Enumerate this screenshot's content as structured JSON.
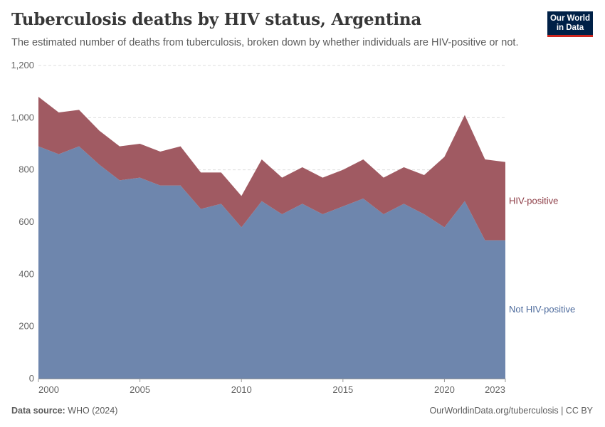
{
  "header": {
    "title": "Tuberculosis deaths by HIV status, Argentina",
    "subtitle": "The estimated number of deaths from tuberculosis, broken down by whether individuals are HIV-positive or not.",
    "logo_line1": "Our World",
    "logo_line2": "in Data"
  },
  "footer": {
    "source_label": "Data source:",
    "source_value": "WHO (2024)",
    "url": "OurWorldinData.org/tuberculosis | CC BY"
  },
  "colors": {
    "not_hiv": "#6e86ad",
    "hiv": "#a05a62",
    "not_hiv_label": "#4c6a9c",
    "hiv_label": "#8c3b44",
    "grid": "#dddddd",
    "axis_text": "#666666"
  },
  "chart_data": {
    "type": "area",
    "stacked": true,
    "x": [
      2000,
      2001,
      2002,
      2003,
      2004,
      2005,
      2006,
      2007,
      2008,
      2009,
      2010,
      2011,
      2012,
      2013,
      2014,
      2015,
      2016,
      2017,
      2018,
      2019,
      2020,
      2021,
      2022,
      2023
    ],
    "series": [
      {
        "name": "Not HIV-positive",
        "values": [
          890,
          860,
          890,
          820,
          760,
          770,
          740,
          740,
          650,
          670,
          580,
          680,
          630,
          670,
          630,
          660,
          690,
          630,
          670,
          630,
          580,
          680,
          530,
          530
        ]
      },
      {
        "name": "HIV-positive",
        "values": [
          190,
          160,
          140,
          130,
          130,
          130,
          130,
          150,
          140,
          120,
          120,
          160,
          140,
          140,
          140,
          140,
          150,
          140,
          140,
          150,
          270,
          330,
          310,
          300
        ]
      }
    ],
    "xticks": [
      "2000",
      "2005",
      "2010",
      "2015",
      "2020",
      "2023"
    ],
    "xtick_values": [
      2000,
      2005,
      2010,
      2015,
      2020,
      2023
    ],
    "yticks": [
      "0",
      "200",
      "400",
      "600",
      "800",
      "1,000",
      "1,200"
    ],
    "ytick_values": [
      0,
      200,
      400,
      600,
      800,
      1000,
      1200
    ],
    "xlim": [
      2000,
      2023
    ],
    "ylim": [
      0,
      1200
    ],
    "grid": true,
    "legend_placement": "right-inline"
  }
}
